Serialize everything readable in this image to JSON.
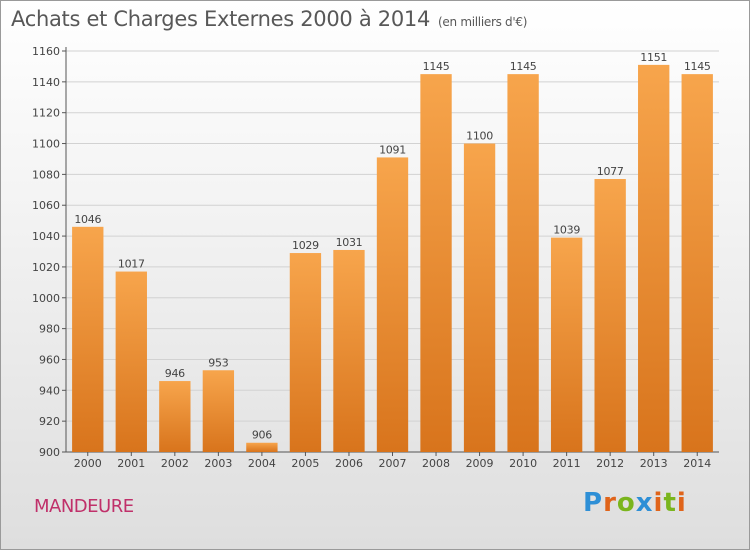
{
  "title": "Achats et Charges Externes 2000 à 2014",
  "subtitle": "(en milliers d'€)",
  "commune": "MANDEURE",
  "logo": {
    "text": "Proxiti",
    "colors": [
      "#2e8fd6",
      "#e0641a",
      "#7ab51d",
      "#2e8fd6",
      "#e0641a",
      "#7ab51d",
      "#e0641a"
    ]
  },
  "colors": {
    "bar_top": "#f7a54c",
    "bar_bottom": "#d8741c",
    "commune": "#c0306a"
  },
  "chart_data": {
    "type": "bar",
    "categories": [
      "2000",
      "2001",
      "2002",
      "2003",
      "2004",
      "2005",
      "2006",
      "2007",
      "2008",
      "2009",
      "2010",
      "2011",
      "2012",
      "2013",
      "2014"
    ],
    "values": [
      1046,
      1017,
      946,
      953,
      906,
      1029,
      1031,
      1091,
      1145,
      1100,
      1145,
      1039,
      1077,
      1151,
      1145
    ],
    "ylim": [
      900,
      1160
    ],
    "yticks": [
      900,
      920,
      940,
      960,
      980,
      1000,
      1020,
      1040,
      1060,
      1080,
      1100,
      1120,
      1140,
      1160
    ],
    "grid": true,
    "data_labels": true,
    "legend": false
  }
}
